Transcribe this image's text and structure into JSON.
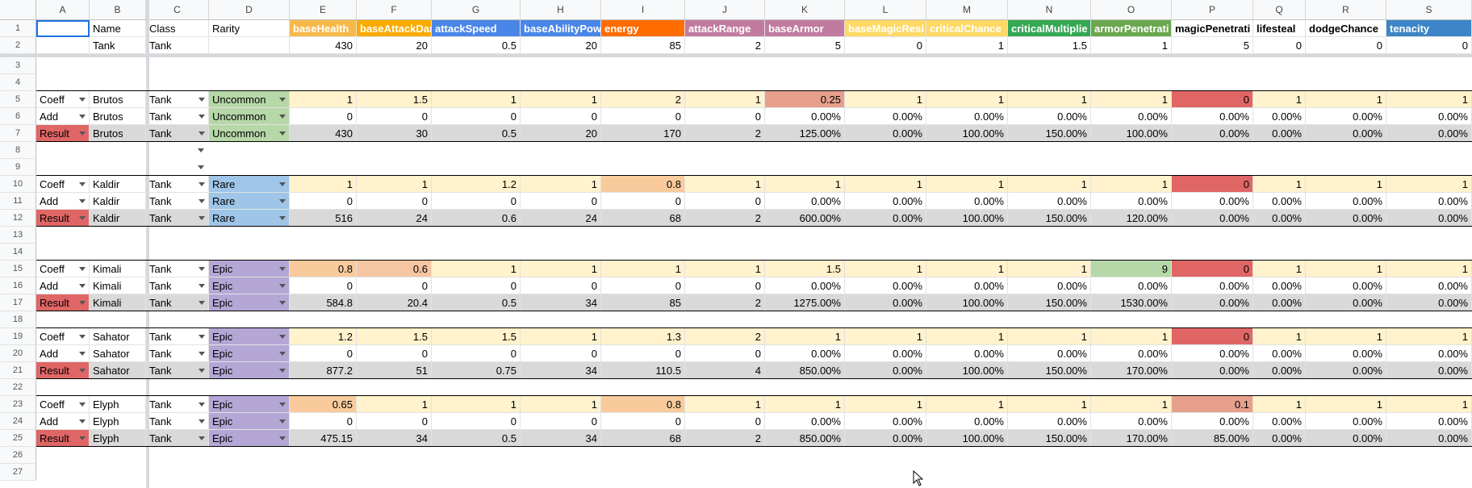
{
  "columns": [
    "A",
    "B",
    "C",
    "D",
    "E",
    "F",
    "G",
    "H",
    "I",
    "J",
    "K",
    "L",
    "M",
    "N",
    "O",
    "P",
    "Q",
    "R",
    "S"
  ],
  "rows": [
    "1",
    "2",
    "3",
    "4",
    "5",
    "6",
    "7",
    "8",
    "9",
    "10",
    "11",
    "12",
    "13",
    "14",
    "15",
    "16",
    "17",
    "18",
    "19",
    "20",
    "21",
    "22",
    "23",
    "24",
    "25",
    "26",
    "27"
  ],
  "header_row": {
    "labels": [
      "",
      "Name",
      "Class",
      "Rarity",
      "baseHealth",
      "baseAttackDam",
      "attackSpeed",
      "baseAbilityPow",
      "energy",
      "attackRange",
      "baseArmor",
      "baseMagicResi",
      "criticalChance",
      "criticalMultiplie",
      "armorPenetrati",
      "magicPenetrati",
      "lifesteal",
      "dodgeChance",
      "tenacity"
    ],
    "colors": [
      "#ffffff",
      "#ffffff",
      "#ffffff",
      "#ffffff",
      "#f7b84a",
      "#f9ab00",
      "#4a86e8",
      "#4a86e8",
      "#ff6d01",
      "#c27ba0",
      "#c27ba0",
      "#ffd966",
      "#ffd966",
      "#34a853",
      "#6aa84f",
      "#ffffff",
      "#ffffff",
      "#ffffff",
      "#3d85c6"
    ],
    "text_colors": [
      "#000000",
      "#000000",
      "#000000",
      "#000000",
      "#ffffff",
      "#ffffff",
      "#ffffff",
      "#ffffff",
      "#ffffff",
      "#ffffff",
      "#ffffff",
      "#ffffff",
      "#ffffff",
      "#ffffff",
      "#ffffff",
      "#000000",
      "#000000",
      "#000000",
      "#ffffff"
    ],
    "bold": [
      false,
      false,
      false,
      false,
      true,
      true,
      true,
      true,
      true,
      true,
      true,
      true,
      true,
      true,
      true,
      true,
      true,
      true,
      true
    ]
  },
  "base_row": [
    "",
    "Tank",
    "Tank",
    "",
    "430",
    "20",
    "0.5",
    "20",
    "85",
    "2",
    "5",
    "0",
    "1",
    "1.5",
    "1",
    "5",
    "0",
    "0",
    "0"
  ],
  "colors": {
    "coeff_bg": "#fff2cc",
    "result_bg": "#d9d9d9",
    "result_label_bg": "#e06666",
    "uncommon_bg": "#b6d7a8",
    "rare_bg": "#9fc5e8",
    "epic_bg": "#b4a7d6",
    "salmon": "#e6a08c",
    "peach": "#f9cb9c",
    "orange_light": "#f6c5a2",
    "red_cell": "#e06666",
    "green_cell": "#b6d7a8",
    "selection": "#1a73e8"
  },
  "groups": [
    {
      "coeff_row": 5,
      "name": "Brutos",
      "rarity": "Uncommon",
      "coeff": [
        "1",
        "1.5",
        "1",
        "1",
        "2",
        "1",
        "0.25",
        "1",
        "1",
        "1",
        "1",
        "0",
        "1",
        "1",
        "1"
      ],
      "coeff_hl": {
        "6": "salmon",
        "11": "red_cell"
      },
      "add": [
        "0",
        "0",
        "0",
        "0",
        "0",
        "0",
        "0.00%",
        "0.00%",
        "0.00%",
        "0.00%",
        "0.00%",
        "0.00%",
        "0.00%",
        "0.00%",
        "0.00%"
      ],
      "result": [
        "430",
        "30",
        "0.5",
        "20",
        "170",
        "2",
        "125.00%",
        "0.00%",
        "100.00%",
        "150.00%",
        "100.00%",
        "0.00%",
        "0.00%",
        "0.00%",
        "0.00%"
      ]
    },
    {
      "coeff_row": 10,
      "name": "Kaldir",
      "rarity": "Rare",
      "coeff": [
        "1",
        "1",
        "1.2",
        "1",
        "0.8",
        "1",
        "1",
        "1",
        "1",
        "1",
        "1",
        "0",
        "1",
        "1",
        "1"
      ],
      "coeff_hl": {
        "4": "peach",
        "11": "red_cell"
      },
      "add": [
        "0",
        "0",
        "0",
        "0",
        "0",
        "0",
        "0.00%",
        "0.00%",
        "0.00%",
        "0.00%",
        "0.00%",
        "0.00%",
        "0.00%",
        "0.00%",
        "0.00%"
      ],
      "result": [
        "516",
        "24",
        "0.6",
        "24",
        "68",
        "2",
        "600.00%",
        "0.00%",
        "100.00%",
        "150.00%",
        "120.00%",
        "0.00%",
        "0.00%",
        "0.00%",
        "0.00%"
      ]
    },
    {
      "coeff_row": 15,
      "name": "Kimali",
      "rarity": "Epic",
      "coeff": [
        "0.8",
        "0.6",
        "1",
        "1",
        "1",
        "1",
        "1.5",
        "1",
        "1",
        "1",
        "9",
        "0",
        "1",
        "1",
        "1"
      ],
      "coeff_hl": {
        "0": "peach",
        "1": "orange_light",
        "10": "green_cell",
        "11": "red_cell"
      },
      "add": [
        "0",
        "0",
        "0",
        "0",
        "0",
        "0",
        "0.00%",
        "0.00%",
        "0.00%",
        "0.00%",
        "0.00%",
        "0.00%",
        "0.00%",
        "0.00%",
        "0.00%"
      ],
      "result": [
        "584.8",
        "20.4",
        "0.5",
        "34",
        "85",
        "2",
        "1275.00%",
        "0.00%",
        "100.00%",
        "150.00%",
        "1530.00%",
        "0.00%",
        "0.00%",
        "0.00%",
        "0.00%"
      ]
    },
    {
      "coeff_row": 19,
      "name": "Sahator",
      "rarity": "Epic",
      "coeff": [
        "1.2",
        "1.5",
        "1.5",
        "1",
        "1.3",
        "2",
        "1",
        "1",
        "1",
        "1",
        "1",
        "0",
        "1",
        "1",
        "1"
      ],
      "coeff_hl": {
        "11": "red_cell"
      },
      "add": [
        "0",
        "0",
        "0",
        "0",
        "0",
        "0",
        "0.00%",
        "0.00%",
        "0.00%",
        "0.00%",
        "0.00%",
        "0.00%",
        "0.00%",
        "0.00%",
        "0.00%"
      ],
      "result": [
        "877.2",
        "51",
        "0.75",
        "34",
        "110.5",
        "4",
        "850.00%",
        "0.00%",
        "100.00%",
        "150.00%",
        "170.00%",
        "0.00%",
        "0.00%",
        "0.00%",
        "0.00%"
      ]
    },
    {
      "coeff_row": 23,
      "name": "Elyph",
      "rarity": "Epic",
      "coeff": [
        "0.65",
        "1",
        "1",
        "1",
        "0.8",
        "1",
        "1",
        "1",
        "1",
        "1",
        "1",
        "0.1",
        "1",
        "1",
        "1"
      ],
      "coeff_hl": {
        "0": "peach",
        "4": "peach",
        "11": "salmon"
      },
      "add": [
        "0",
        "0",
        "0",
        "0",
        "0",
        "0",
        "0.00%",
        "0.00%",
        "0.00%",
        "0.00%",
        "0.00%",
        "0.00%",
        "0.00%",
        "0.00%",
        "0.00%"
      ],
      "result": [
        "475.15",
        "34",
        "0.5",
        "34",
        "68",
        "2",
        "850.00%",
        "0.00%",
        "100.00%",
        "150.00%",
        "170.00%",
        "85.00%",
        "0.00%",
        "0.00%",
        "0.00%"
      ]
    }
  ],
  "row_labels": {
    "coeff": "Coeff",
    "add": "Add",
    "result": "Result"
  },
  "class_value": "Tank",
  "icons": {
    "dropdown": "chevron-down-icon",
    "cursor": "mouse-pointer-icon"
  }
}
